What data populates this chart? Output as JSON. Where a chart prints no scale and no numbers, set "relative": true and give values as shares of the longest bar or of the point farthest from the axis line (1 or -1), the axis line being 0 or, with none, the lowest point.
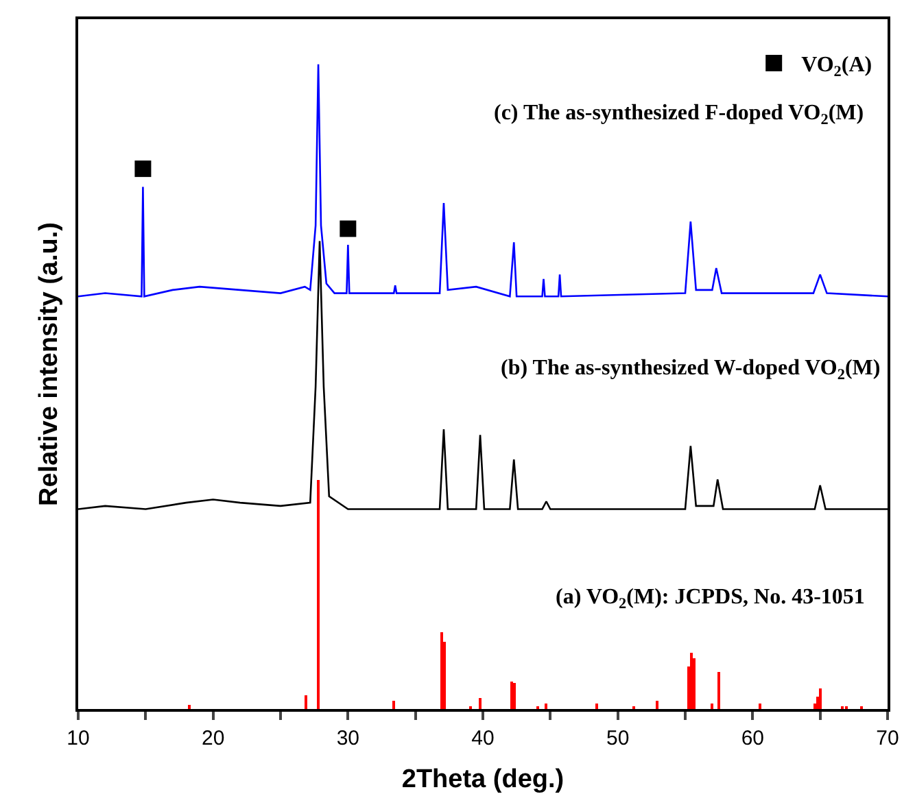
{
  "chart_data": {
    "type": "line",
    "relative": true,
    "xlabel": "2Theta (deg.)",
    "ylabel": "Relative intensity (a.u.)",
    "xlim": [
      10,
      70
    ],
    "xticks": [
      10,
      {
        "value": 15,
        "label": null
      },
      20,
      {
        "value": 25,
        "label": null
      },
      30,
      {
        "value": 35,
        "label": null
      },
      40,
      {
        "value": 45,
        "label": null
      },
      50,
      {
        "value": 55,
        "label": null
      },
      60,
      {
        "value": 65,
        "label": null
      },
      70
    ],
    "tick_labels": "x",
    "legend": "top right",
    "series": [
      {
        "type": "bar",
        "color": "#ff0000",
        "x": [
          18.2,
          26.9,
          27.8,
          33.4,
          37.0,
          37.2,
          39.1,
          39.8,
          42.1,
          42.3,
          44.1,
          44.7,
          48.5,
          51.2,
          52.9,
          55.3,
          55.5,
          55.7,
          57.0,
          57.5,
          60.6,
          64.6,
          64.8,
          65.0,
          66.7,
          67.0,
          68.1
        ],
        "values": [
          0.006,
          0.021,
          0.356,
          0.013,
          0.12,
          0.105,
          0.005,
          0.017,
          0.042,
          0.04,
          0.005,
          0.008,
          0.008,
          0.005,
          0.012,
          0.067,
          0.088,
          0.078,
          0.008,
          0.057,
          0.008,
          0.008,
          0.02,
          0.032,
          0.005,
          0.005,
          0.005
        ]
      },
      {
        "color": "#000000",
        "marker": "none",
        "x": [
          10,
          12,
          15,
          18,
          20,
          22,
          25,
          27.2,
          27.6,
          27.9,
          28.2,
          28.6,
          30,
          33,
          36.8,
          37.1,
          37.4,
          39.5,
          39.8,
          40.1,
          42.0,
          42.3,
          42.6,
          44.4,
          44.7,
          45.0,
          50,
          55.0,
          55.4,
          55.8,
          57.1,
          57.4,
          57.8,
          64.6,
          65.0,
          65.4,
          70
        ],
        "values": [
          0.31,
          0.315,
          0.31,
          0.32,
          0.325,
          0.32,
          0.315,
          0.32,
          0.5,
          0.726,
          0.5,
          0.33,
          0.31,
          0.31,
          0.31,
          0.434,
          0.31,
          0.31,
          0.425,
          0.31,
          0.31,
          0.387,
          0.31,
          0.31,
          0.322,
          0.31,
          0.31,
          0.31,
          0.408,
          0.315,
          0.315,
          0.356,
          0.31,
          0.31,
          0.347,
          0.31,
          0.31
        ]
      },
      {
        "color": "#0000ff",
        "marker": "none",
        "x": [
          10,
          12,
          14.7,
          14.8,
          14.9,
          17,
          19,
          22,
          25,
          26.8,
          27.2,
          27.6,
          27.8,
          28.0,
          28.4,
          29.0,
          29.9,
          30.0,
          30.1,
          33.4,
          33.5,
          33.6,
          36.8,
          37.1,
          37.4,
          39.5,
          42.0,
          42.3,
          42.5,
          44.4,
          44.5,
          44.6,
          45.6,
          45.7,
          45.8,
          55.0,
          55.4,
          55.8,
          57.0,
          57.3,
          57.7,
          64.5,
          65.0,
          65.5,
          70
        ],
        "values": [
          0.64,
          0.645,
          0.64,
          0.81,
          0.64,
          0.65,
          0.655,
          0.65,
          0.645,
          0.655,
          0.65,
          0.75,
          1.0,
          0.75,
          0.66,
          0.645,
          0.645,
          0.72,
          0.645,
          0.645,
          0.657,
          0.645,
          0.645,
          0.785,
          0.65,
          0.655,
          0.64,
          0.724,
          0.64,
          0.64,
          0.667,
          0.64,
          0.64,
          0.674,
          0.64,
          0.645,
          0.756,
          0.65,
          0.65,
          0.684,
          0.645,
          0.645,
          0.674,
          0.645,
          0.64
        ]
      },
      {
        "type": "scatter",
        "name": "VO$_{2}$(A)",
        "color": "#000000",
        "marker": "square",
        "x": [
          14.8,
          30.0
        ],
        "values": [
          0.838,
          0.745
        ]
      }
    ],
    "annotations": [
      "(c) The as-synthesized F-doped VO$_{2}$(M)",
      "(b) The as-synthesized W-doped VO$_{2}$(M)",
      "(a) VO$_{2}$(M): JCPDS, No. 43-1051"
    ]
  }
}
